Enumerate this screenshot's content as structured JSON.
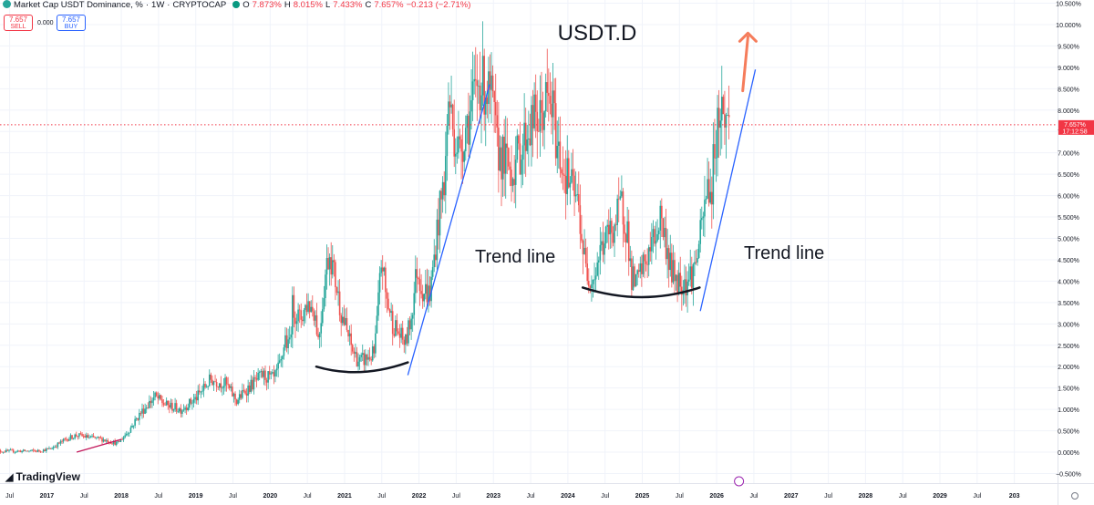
{
  "header": {
    "symbol": "Market Cap USDT Dominance, %",
    "interval": "1W",
    "exchange": "CRYPTOCAP",
    "open_label": "O",
    "open": "7.873%",
    "high_label": "H",
    "high": "8.015%",
    "low_label": "L",
    "low": "7.433%",
    "close_label": "C",
    "close": "7.657%",
    "change": "−0.213 (−2.71%)"
  },
  "trade": {
    "sell_price": "7.657",
    "sell_label": "SELL",
    "spread": "0.000",
    "buy_price": "7.657",
    "buy_label": "BUY"
  },
  "branding": {
    "name": "TradingView"
  },
  "price_tag": {
    "value": "7.657%",
    "countdown": "17:12:58"
  },
  "colors": {
    "up": "#26a69a",
    "down": "#ef5350",
    "trend": "#2962ff",
    "arrow": "#f57c5b",
    "curve": "#131722",
    "pink": "#c2185b",
    "price_line": "#f23645"
  },
  "chart_data": {
    "type": "candlestick",
    "title": "USDT.D",
    "annotations": [
      "Trend line",
      "Trend line"
    ],
    "y_ticks": [
      "10.500%",
      "10.000%",
      "9.500%",
      "9.000%",
      "8.500%",
      "8.000%",
      "7.500%",
      "7.000%",
      "6.500%",
      "6.000%",
      "5.500%",
      "5.000%",
      "4.500%",
      "4.000%",
      "3.500%",
      "3.000%",
      "2.500%",
      "2.000%",
      "1.500%",
      "1.000%",
      "0.500%",
      "0.000%",
      "−0.500%"
    ],
    "x_ticks": [
      "Jul",
      "2017",
      "Jul",
      "2018",
      "Jul",
      "2019",
      "Jul",
      "2020",
      "Jul",
      "2021",
      "Jul",
      "2022",
      "Jul",
      "2023",
      "Jul",
      "2024",
      "Jul",
      "2025",
      "Jul",
      "2026",
      "Jul",
      "2027",
      "Jul",
      "2028",
      "Jul",
      "2029",
      "Jul",
      "203"
    ],
    "ylim": [
      -0.5,
      10.5
    ],
    "xlim": [
      2016.37,
      2030.58
    ],
    "last_close": 7.657,
    "path_points": [
      [
        2016.3,
        0.02
      ],
      [
        2016.9,
        0.03
      ],
      [
        2017.05,
        0.08
      ],
      [
        2017.25,
        0.3
      ],
      [
        2017.4,
        0.4
      ],
      [
        2017.55,
        0.35
      ],
      [
        2017.75,
        0.3
      ],
      [
        2017.95,
        0.2
      ],
      [
        2018.1,
        0.5
      ],
      [
        2018.25,
        0.9
      ],
      [
        2018.45,
        1.3
      ],
      [
        2018.6,
        1.1
      ],
      [
        2018.8,
        1.0
      ],
      [
        2019.0,
        1.25
      ],
      [
        2019.2,
        1.7
      ],
      [
        2019.4,
        1.6
      ],
      [
        2019.55,
        1.2
      ],
      [
        2019.7,
        1.5
      ],
      [
        2019.9,
        1.8
      ],
      [
        2020.05,
        1.7
      ],
      [
        2020.15,
        2.1
      ],
      [
        2020.2,
        2.7
      ],
      [
        2020.25,
        2.4
      ],
      [
        2020.3,
        3.4
      ],
      [
        2020.4,
        3.1
      ],
      [
        2020.5,
        3.5
      ],
      [
        2020.6,
        3.3
      ],
      [
        2020.65,
        2.6
      ],
      [
        2020.75,
        4.3
      ],
      [
        2020.8,
        4.7
      ],
      [
        2020.9,
        3.8
      ],
      [
        2020.95,
        3.3
      ],
      [
        2021.0,
        3.0
      ],
      [
        2021.1,
        2.4
      ],
      [
        2021.2,
        2.1
      ],
      [
        2021.3,
        2.2
      ],
      [
        2021.4,
        2.3
      ],
      [
        2021.45,
        3.4
      ],
      [
        2021.5,
        4.6
      ],
      [
        2021.55,
        3.7
      ],
      [
        2021.65,
        3.0
      ],
      [
        2021.75,
        2.7
      ],
      [
        2021.82,
        2.55
      ],
      [
        2021.9,
        3.2
      ],
      [
        2021.97,
        4.3
      ],
      [
        2022.05,
        3.8
      ],
      [
        2022.15,
        3.7
      ],
      [
        2022.25,
        5.3
      ],
      [
        2022.35,
        6.5
      ],
      [
        2022.4,
        8.4
      ],
      [
        2022.45,
        7.6
      ],
      [
        2022.55,
        7.0
      ],
      [
        2022.62,
        7.6
      ],
      [
        2022.7,
        8.0
      ],
      [
        2022.8,
        8.7
      ],
      [
        2022.9,
        8.5
      ],
      [
        2022.98,
        8.2
      ],
      [
        2023.05,
        7.1
      ],
      [
        2023.15,
        6.8
      ],
      [
        2023.25,
        6.6
      ],
      [
        2023.35,
        7.0
      ],
      [
        2023.45,
        7.5
      ],
      [
        2023.55,
        7.8
      ],
      [
        2023.62,
        7.7
      ],
      [
        2023.7,
        8.2
      ],
      [
        2023.8,
        8.0
      ],
      [
        2023.85,
        7.2
      ],
      [
        2023.95,
        6.6
      ],
      [
        2024.05,
        6.2
      ],
      [
        2024.15,
        5.7
      ],
      [
        2024.2,
        4.8
      ],
      [
        2024.25,
        4.2
      ],
      [
        2024.35,
        4.1
      ],
      [
        2024.45,
        4.8
      ],
      [
        2024.55,
        5.1
      ],
      [
        2024.65,
        5.4
      ],
      [
        2024.72,
        5.8
      ],
      [
        2024.8,
        5.2
      ],
      [
        2024.85,
        4.1
      ],
      [
        2024.92,
        3.9
      ],
      [
        2025.0,
        4.3
      ],
      [
        2025.1,
        4.7
      ],
      [
        2025.2,
        5.2
      ],
      [
        2025.25,
        5.6
      ],
      [
        2025.3,
        5.0
      ],
      [
        2025.4,
        4.2
      ],
      [
        2025.5,
        4.0
      ],
      [
        2025.6,
        4.0
      ],
      [
        2025.7,
        4.3
      ],
      [
        2025.8,
        5.2
      ],
      [
        2025.88,
        6.3
      ],
      [
        2025.93,
        6.0
      ],
      [
        2025.97,
        7.2
      ],
      [
        2026.05,
        8.1
      ],
      [
        2026.12,
        7.8
      ],
      [
        2026.18,
        7.66
      ]
    ],
    "overlays": {
      "trend_lines": [
        [
          [
            2021.85,
            1.8
          ],
          [
            2022.95,
            8.6
          ]
        ],
        [
          [
            2025.78,
            3.3
          ],
          [
            2026.52,
            8.95
          ]
        ],
        [
          [
            2017.4,
            0.0
          ],
          [
            2018.0,
            0.3
          ]
        ]
      ],
      "curves": [
        [
          [
            2020.62,
            2.0
          ],
          [
            2021.2,
            1.7
          ],
          [
            2021.85,
            2.1
          ]
        ],
        [
          [
            2024.2,
            3.85
          ],
          [
            2025.0,
            3.4
          ],
          [
            2025.77,
            3.85
          ]
        ]
      ],
      "arrow": [
        [
          2026.35,
          8.45
        ],
        [
          2026.42,
          9.8
        ]
      ]
    }
  }
}
